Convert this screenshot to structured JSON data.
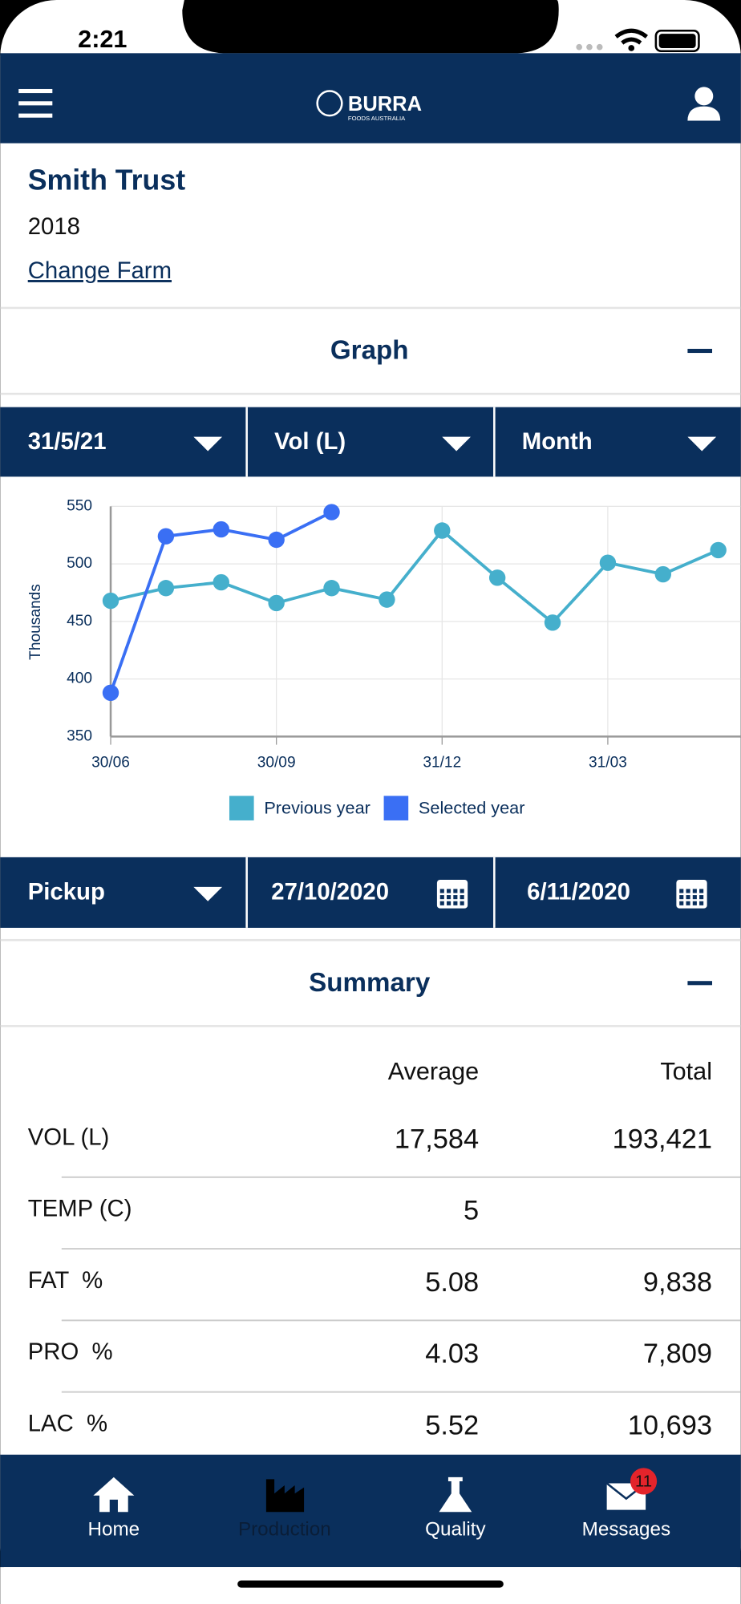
{
  "status_bar": {
    "time": "2:21"
  },
  "header": {
    "logo": "BURRA",
    "logo_sub": "FOODS AUSTRALIA"
  },
  "farm": {
    "name": "Smith Trust",
    "year": "2018",
    "link": "Change Farm"
  },
  "graph_section": {
    "title": "Graph"
  },
  "graph_filters": [
    "31/5/21",
    "Vol (L)",
    "Month"
  ],
  "chart_data": {
    "type": "line",
    "y_label": "Thousands",
    "categories": [
      "30/06",
      null,
      null,
      "30/09",
      null,
      null,
      "31/12",
      null,
      null,
      "31/03",
      null,
      null
    ],
    "series": [
      {
        "name": "Previous year",
        "color": "#45afcc",
        "values": [
          468,
          479,
          484,
          466,
          479,
          469,
          529,
          488,
          449,
          501,
          491,
          512
        ]
      },
      {
        "name": "Selected year",
        "color": "#3a6ff4",
        "values": [
          388,
          524,
          530,
          521,
          545,
          null,
          null,
          null,
          null,
          null,
          null,
          null
        ]
      }
    ],
    "ylim": [
      350,
      550
    ],
    "yticks": [
      350,
      400,
      450,
      500,
      550
    ],
    "grid": true
  },
  "range_filters": [
    "Pickup",
    "27/10/2020",
    "6/11/2020"
  ],
  "summary": {
    "title": "Summary",
    "columns": [
      "Average",
      "Total"
    ],
    "rows": [
      {
        "label": "VOL (L)",
        "average": "17,584",
        "total": "193,421"
      },
      {
        "label": "TEMP (C)",
        "average": "5"
      },
      {
        "label": "FAT  %",
        "average": "5.08",
        "total": "9,838"
      },
      {
        "label": "PRO  %",
        "average": "4.03",
        "total": "7,809"
      },
      {
        "label": "LAC  %",
        "average": "5.52",
        "total": "10,693"
      }
    ]
  },
  "tab_bar": {
    "tabs": [
      "Home",
      "Production",
      "Quality",
      "Messages"
    ],
    "badge": "11"
  }
}
